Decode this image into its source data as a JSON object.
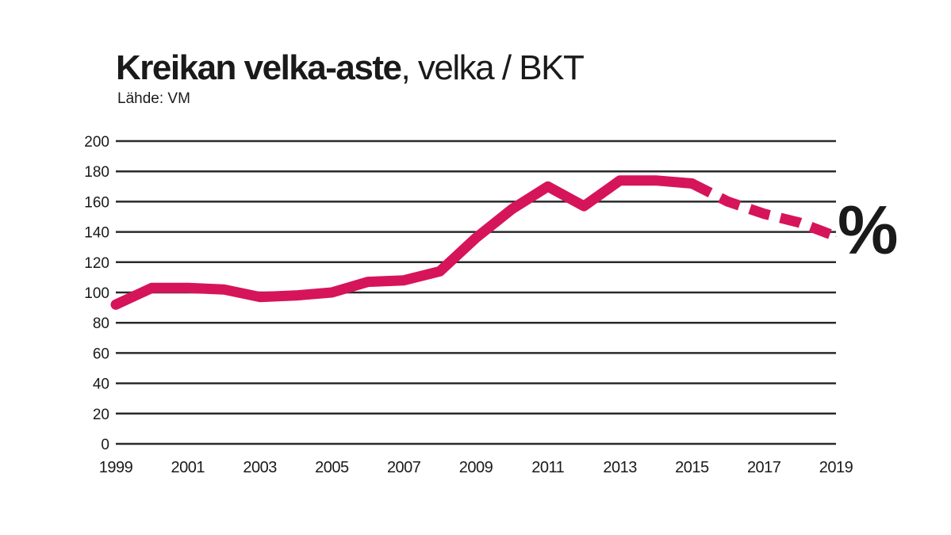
{
  "title": {
    "bold": "Kreikan velka-aste",
    "rest": ", velka / BKT"
  },
  "source": "Lähde: VM",
  "colors": {
    "line": "#d6145a",
    "grid": "#2a2a2a",
    "text": "#1a1a1a"
  },
  "chart_data": {
    "type": "line",
    "title": "Kreikan velka-aste, velka / BKT",
    "unit_label": "%",
    "ylim": [
      0,
      200
    ],
    "xlim": [
      1999,
      2019
    ],
    "yticks": [
      0,
      20,
      40,
      60,
      80,
      100,
      120,
      140,
      160,
      180,
      200
    ],
    "xticks": [
      1999,
      2001,
      2003,
      2005,
      2007,
      2009,
      2011,
      2013,
      2015,
      2017,
      2019
    ],
    "grid": true,
    "series": [
      {
        "style": "solid",
        "x": [
          1999,
          2000,
          2001,
          2002,
          2003,
          2004,
          2005,
          2006,
          2007,
          2008,
          2009,
          2010,
          2011,
          2012,
          2013,
          2014,
          2015
        ],
        "y": [
          92,
          103,
          103,
          102,
          97,
          98,
          100,
          107,
          108,
          114,
          136,
          155,
          170,
          157,
          174,
          174,
          172
        ]
      },
      {
        "style": "dashed",
        "x": [
          2015,
          2016,
          2017,
          2018,
          2019
        ],
        "y": [
          172,
          160,
          152,
          146,
          137
        ]
      }
    ]
  }
}
